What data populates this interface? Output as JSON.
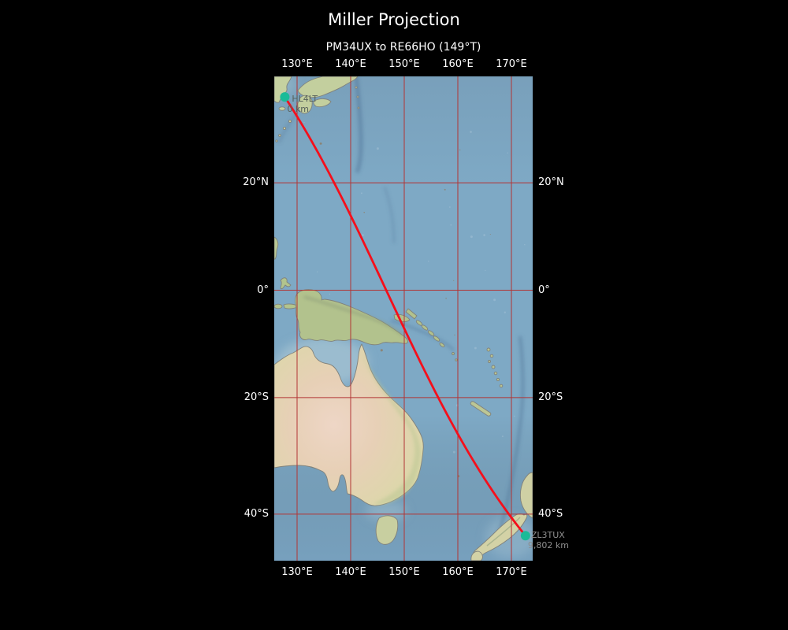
{
  "title": "Miller Projection",
  "subtitle": "PM34UX to RE66HO (149°T)",
  "projection_name": "Miller",
  "axes": {
    "lon_ticks": [
      "130°E",
      "140°E",
      "150°E",
      "160°E",
      "170°E"
    ],
    "lat_ticks": [
      "20°N",
      "0°",
      "20°S",
      "40°S"
    ]
  },
  "route": {
    "from_grid": "PM34UX",
    "to_grid": "RE66HO",
    "bearing_label": "149°T",
    "start": {
      "callsign": "HL4LT",
      "distance_label": "0 km",
      "lat": 34.979,
      "lon": 127.708
    },
    "end": {
      "callsign": "ZL3TUX",
      "distance_label": "9,802 km",
      "lat": -43.396,
      "lon": 172.625
    }
  },
  "colors": {
    "background": "#000000",
    "ocean": "#7ea9c5",
    "grid": "#b23434",
    "route": "#f50f1b",
    "marker": "#1bbb98",
    "text": "#ffffff",
    "start_label": "#57605a",
    "end_label": "#8e8e8e",
    "coastline": "#80827c"
  }
}
